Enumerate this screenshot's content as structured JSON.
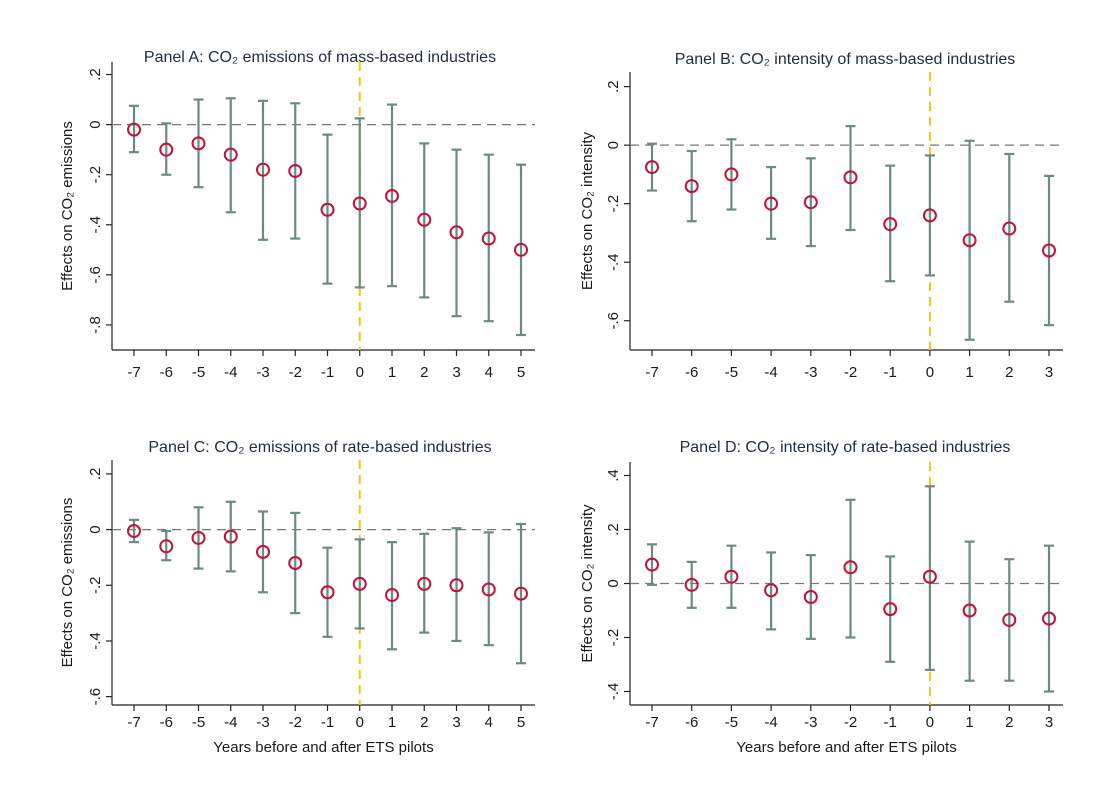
{
  "figure": {
    "x_title": "Years before and after ETS pilots"
  },
  "chart_data": [
    {
      "type": "scatter",
      "title": "Panel A: CO₂ emissions of mass-based industries",
      "ylabel": "Effects on CO₂ emissions",
      "xlabel": "",
      "x": [
        -7,
        -6,
        -5,
        -4,
        -3,
        -2,
        -1,
        0,
        1,
        2,
        3,
        4,
        5
      ],
      "estimates": [
        -0.02,
        -0.1,
        -0.075,
        -0.12,
        -0.18,
        -0.185,
        -0.34,
        -0.315,
        -0.285,
        -0.38,
        -0.43,
        -0.455,
        -0.5
      ],
      "ci_low": [
        -0.11,
        -0.2,
        -0.25,
        -0.35,
        -0.46,
        -0.455,
        -0.635,
        -0.65,
        -0.645,
        -0.69,
        -0.765,
        -0.785,
        -0.84
      ],
      "ci_high": [
        0.075,
        0.005,
        0.1,
        0.105,
        0.095,
        0.085,
        -0.04,
        0.025,
        0.08,
        -0.075,
        -0.1,
        -0.12,
        -0.16
      ],
      "yticks": [
        0.2,
        0,
        -0.2,
        -0.4,
        -0.6,
        -0.8
      ],
      "ytick_labels": [
        ".2",
        "0",
        "-.2",
        "-.4",
        "-.6",
        "-.8"
      ],
      "xticks": [
        "-7",
        "-6",
        "-5",
        "-4",
        "-3",
        "-2",
        "-1",
        "0",
        "1",
        "2",
        "3",
        "4",
        "5"
      ],
      "ylim": [
        -0.9,
        0.25
      ],
      "xlim": [
        -7.5,
        5.5
      ],
      "reference_lines": {
        "y": 0,
        "x": 0
      }
    },
    {
      "type": "scatter",
      "title": "Panel B: CO₂ intensity of mass-based industries",
      "ylabel": "Effects on CO₂ intensity",
      "xlabel": "",
      "x": [
        -7,
        -6,
        -5,
        -4,
        -3,
        -2,
        -1,
        0,
        1,
        2,
        3
      ],
      "estimates": [
        -0.075,
        -0.14,
        -0.1,
        -0.2,
        -0.195,
        -0.11,
        -0.27,
        -0.24,
        -0.325,
        -0.285,
        -0.36
      ],
      "ci_low": [
        -0.155,
        -0.26,
        -0.22,
        -0.32,
        -0.345,
        -0.29,
        -0.465,
        -0.445,
        -0.665,
        -0.535,
        -0.615
      ],
      "ci_high": [
        0.005,
        -0.02,
        0.02,
        -0.075,
        -0.045,
        0.065,
        -0.07,
        -0.035,
        0.015,
        -0.03,
        -0.105
      ],
      "yticks": [
        0.2,
        0,
        -0.2,
        -0.4,
        -0.6
      ],
      "ytick_labels": [
        ".2",
        "0",
        "-.2",
        "-.4",
        "-.6"
      ],
      "xticks": [
        "-7",
        "-6",
        "-5",
        "-4",
        "-3",
        "-2",
        "-1",
        "0",
        "1",
        "2",
        "3"
      ],
      "ylim": [
        -0.7,
        0.25
      ],
      "xlim": [
        -7.5,
        3.5
      ],
      "reference_lines": {
        "y": 0,
        "x": 0
      }
    },
    {
      "type": "scatter",
      "title": "Panel C: CO₂ emissions of rate-based industries",
      "ylabel": "Effects on CO₂ emissions",
      "xlabel": "Years before and after ETS pilots",
      "x": [
        -7,
        -6,
        -5,
        -4,
        -3,
        -2,
        -1,
        0,
        1,
        2,
        3,
        4,
        5
      ],
      "estimates": [
        -0.005,
        -0.06,
        -0.03,
        -0.025,
        -0.08,
        -0.12,
        -0.225,
        -0.195,
        -0.235,
        -0.195,
        -0.2,
        -0.215,
        -0.23
      ],
      "ci_low": [
        -0.045,
        -0.11,
        -0.14,
        -0.15,
        -0.225,
        -0.3,
        -0.385,
        -0.355,
        -0.43,
        -0.37,
        -0.4,
        -0.415,
        -0.48
      ],
      "ci_high": [
        0.035,
        -0.005,
        0.08,
        0.1,
        0.065,
        0.06,
        -0.065,
        -0.035,
        -0.045,
        -0.015,
        0.005,
        -0.01,
        0.02
      ],
      "yticks": [
        0.2,
        0,
        -0.2,
        -0.4,
        -0.6
      ],
      "ytick_labels": [
        ".2",
        "0",
        "-.2",
        "-.4",
        "-.6"
      ],
      "xticks": [
        "-7",
        "-6",
        "-5",
        "-4",
        "-3",
        "-2",
        "-1",
        "0",
        "1",
        "2",
        "3",
        "4",
        "5"
      ],
      "ylim": [
        -0.63,
        0.25
      ],
      "xlim": [
        -7.5,
        5.5
      ],
      "reference_lines": {
        "y": 0,
        "x": 0
      }
    },
    {
      "type": "scatter",
      "title": "Panel D: CO₂ intensity of rate-based industries",
      "ylabel": "Effects on CO₂ intensity",
      "xlabel": "Years before and after ETS pilots",
      "x": [
        -7,
        -6,
        -5,
        -4,
        -3,
        -2,
        -1,
        0,
        1,
        2,
        3
      ],
      "estimates": [
        0.07,
        -0.005,
        0.025,
        -0.025,
        -0.05,
        0.06,
        -0.095,
        0.025,
        -0.1,
        -0.135,
        -0.13
      ],
      "ci_low": [
        -0.005,
        -0.09,
        -0.09,
        -0.17,
        -0.205,
        -0.2,
        -0.29,
        -0.32,
        -0.36,
        -0.36,
        -0.4
      ],
      "ci_high": [
        0.145,
        0.08,
        0.14,
        0.115,
        0.105,
        0.31,
        0.1,
        0.36,
        0.155,
        0.09,
        0.14
      ],
      "yticks": [
        0.4,
        0.2,
        0,
        -0.2,
        -0.4
      ],
      "ytick_labels": [
        ".4",
        ".2",
        "0",
        "-.2",
        "-.4"
      ],
      "xticks": [
        "-7",
        "-6",
        "-5",
        "-4",
        "-3",
        "-2",
        "-1",
        "0",
        "1",
        "2",
        "3"
      ],
      "ylim": [
        -0.45,
        0.45
      ],
      "xlim": [
        -7.5,
        3.5
      ],
      "reference_lines": {
        "y": 0,
        "x": 0
      }
    }
  ],
  "colors": {
    "point": "#c0123a",
    "ci": "#6b8a80",
    "zero_line": "#777777",
    "event_line": "#f5c518"
  }
}
